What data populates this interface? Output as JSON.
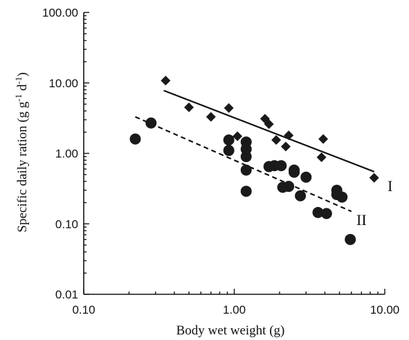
{
  "chart_data": {
    "type": "scatter",
    "xlabel": "Body wet weight (g)",
    "ylabel_main": "Specific daily ration (g g",
    "ylabel_sup1": "-1",
    "ylabel_mid": " d",
    "ylabel_sup2": "-1",
    "ylabel_end": ")",
    "x_scale": "log",
    "y_scale": "log",
    "xlim": [
      0.1,
      10
    ],
    "ylim": [
      0.01,
      100
    ],
    "x_ticks": [
      0.1,
      1,
      10
    ],
    "x_tick_labels": [
      "0.10",
      "1.00",
      "10.00"
    ],
    "y_ticks": [
      0.01,
      0.1,
      1,
      10,
      100
    ],
    "y_tick_labels": [
      "0.01",
      "0.10",
      "1.00",
      "10.00",
      "100.00"
    ],
    "grid": false,
    "series": [
      {
        "marker": "diamond",
        "color": "#1a1a1a",
        "points": [
          [
            0.35,
            10.8
          ],
          [
            0.5,
            4.5
          ],
          [
            0.7,
            3.3
          ],
          [
            0.92,
            4.4
          ],
          [
            1.05,
            1.75
          ],
          [
            1.6,
            3.1
          ],
          [
            1.7,
            2.6
          ],
          [
            1.9,
            1.55
          ],
          [
            2.2,
            1.25
          ],
          [
            2.3,
            1.8
          ],
          [
            3.8,
            0.88
          ],
          [
            3.9,
            1.6
          ],
          [
            8.5,
            0.45
          ]
        ]
      },
      {
        "marker": "circle",
        "color": "#1a1a1a",
        "points": [
          [
            0.22,
            1.6
          ],
          [
            0.28,
            2.7
          ],
          [
            0.92,
            1.55
          ],
          [
            0.92,
            1.1
          ],
          [
            1.2,
            1.45
          ],
          [
            1.2,
            1.15
          ],
          [
            1.2,
            0.9
          ],
          [
            1.2,
            0.58
          ],
          [
            1.2,
            0.29
          ],
          [
            1.7,
            0.65
          ],
          [
            1.85,
            0.67
          ],
          [
            2.05,
            0.67
          ],
          [
            2.1,
            0.33
          ],
          [
            2.3,
            0.34
          ],
          [
            2.5,
            0.58
          ],
          [
            2.5,
            0.54
          ],
          [
            2.75,
            0.25
          ],
          [
            3.0,
            0.46
          ],
          [
            3.6,
            0.145
          ],
          [
            4.1,
            0.14
          ],
          [
            4.8,
            0.3
          ],
          [
            4.8,
            0.26
          ],
          [
            5.2,
            0.24
          ],
          [
            5.9,
            0.06
          ]
        ]
      }
    ],
    "fit_lines": [
      {
        "label": "I",
        "style": "solid",
        "x": [
          0.34,
          8.5
        ],
        "y": [
          7.8,
          0.55
        ]
      },
      {
        "label": "II",
        "style": "dashed",
        "x": [
          0.22,
          6.0
        ],
        "y": [
          3.3,
          0.15
        ]
      }
    ]
  }
}
